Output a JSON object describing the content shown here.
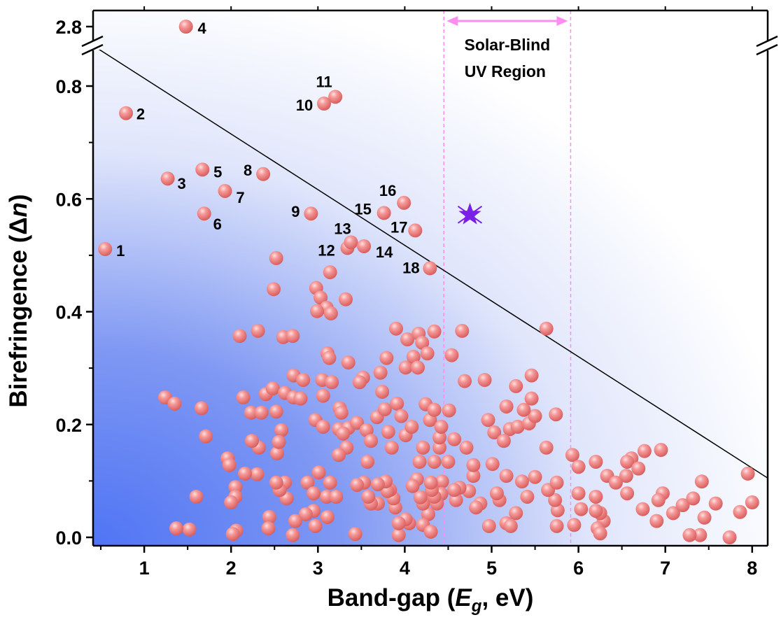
{
  "chart_data": {
    "type": "scatter",
    "xlabel": {
      "prefix": "Band-gap (",
      "var": "E",
      "sub": "g",
      "suffix": ", eV)"
    },
    "ylabel": {
      "prefix": "Birefringence (",
      "delta": "Δ",
      "var": "n",
      "suffix": ")"
    },
    "xlim": [
      0.41,
      8.18
    ],
    "ylim": [
      -0.015,
      0.87
    ],
    "y_break": {
      "above": 0.87,
      "upper_tick": 2.8
    },
    "x_ticks": [
      "1",
      "2",
      "3",
      "4",
      "5",
      "6",
      "7",
      "8"
    ],
    "x_tick_values": [
      1,
      2,
      3,
      4,
      5,
      6,
      7,
      8
    ],
    "y_ticks": [
      "0.0",
      "0.2",
      "0.4",
      "0.6",
      "0.8"
    ],
    "y_tick_values": [
      0,
      0.2,
      0.4,
      0.6,
      0.8
    ],
    "y_upper_tick": "2.8",
    "grid": false,
    "colors": {
      "point": "#f08080",
      "point_highlight": "#ffe0e0",
      "star": "#7a1fe6",
      "line": "#000000",
      "region": "#ff8cf0",
      "background_blue": "#4f74f5"
    },
    "region": {
      "x_range": [
        4.45,
        5.91
      ],
      "label_line1": "Solar-Blind",
      "label_line2": "UV Region"
    },
    "trend_line": {
      "from": [
        0.41,
        0.872
      ],
      "to": [
        8.18,
        0.105
      ]
    },
    "star_point": {
      "x": 4.75,
      "y": 0.572
    },
    "labeled_points": [
      {
        "label": "1",
        "x": 0.55,
        "y": 0.511
      },
      {
        "label": "2",
        "x": 0.79,
        "y": 0.752
      },
      {
        "label": "3",
        "x": 1.27,
        "y": 0.636
      },
      {
        "label": "4",
        "x": 1.48,
        "y": 2.8
      },
      {
        "label": "5",
        "x": 1.67,
        "y": 0.652
      },
      {
        "label": "6",
        "x": 1.69,
        "y": 0.574
      },
      {
        "label": "7",
        "x": 1.93,
        "y": 0.614
      },
      {
        "label": "8",
        "x": 2.37,
        "y": 0.644
      },
      {
        "label": "9",
        "x": 2.92,
        "y": 0.574
      },
      {
        "label": "10",
        "x": 3.07,
        "y": 0.769
      },
      {
        "label": "11",
        "x": 3.2,
        "y": 0.781
      },
      {
        "label": "12",
        "x": 3.34,
        "y": 0.513
      },
      {
        "label": "13",
        "x": 3.38,
        "y": 0.523
      },
      {
        "label": "14",
        "x": 3.53,
        "y": 0.516
      },
      {
        "label": "15",
        "x": 3.76,
        "y": 0.575
      },
      {
        "label": "16",
        "x": 3.99,
        "y": 0.593
      },
      {
        "label": "17",
        "x": 4.12,
        "y": 0.544
      },
      {
        "label": "18",
        "x": 4.29,
        "y": 0.477
      }
    ],
    "points": [
      [
        2.52,
        0.495
      ],
      [
        2.49,
        0.44
      ],
      [
        2.98,
        0.442
      ],
      [
        3.03,
        0.425
      ],
      [
        3.1,
        0.407
      ],
      [
        3.15,
        0.397
      ],
      [
        2.99,
        0.401
      ],
      [
        3.32,
        0.422
      ],
      [
        3.14,
        0.47
      ],
      [
        2.31,
        0.366
      ],
      [
        2.1,
        0.357
      ],
      [
        2.6,
        0.355
      ],
      [
        2.71,
        0.357
      ],
      [
        3.11,
        0.326
      ],
      [
        3.13,
        0.318
      ],
      [
        3.35,
        0.31
      ],
      [
        1.24,
        0.248
      ],
      [
        1.35,
        0.237
      ],
      [
        1.66,
        0.229
      ],
      [
        1.71,
        0.179
      ],
      [
        2.14,
        0.248
      ],
      [
        2.23,
        0.221
      ],
      [
        2.35,
        0.221
      ],
      [
        2.4,
        0.254
      ],
      [
        2.48,
        0.264
      ],
      [
        2.52,
        0.223
      ],
      [
        2.62,
        0.256
      ],
      [
        2.72,
        0.248
      ],
      [
        2.72,
        0.287
      ],
      [
        2.83,
        0.279
      ],
      [
        3.05,
        0.279
      ],
      [
        3.16,
        0.275
      ],
      [
        3.06,
        0.251
      ],
      [
        2.8,
        0.246
      ],
      [
        2.97,
        0.208
      ],
      [
        3.06,
        0.196
      ],
      [
        3.25,
        0.229
      ],
      [
        3.27,
        0.221
      ],
      [
        3.24,
        0.192
      ],
      [
        3.35,
        0.194
      ],
      [
        3.45,
        0.203
      ],
      [
        3.52,
        0.283
      ],
      [
        3.48,
        0.275
      ],
      [
        3.72,
        0.292
      ],
      [
        3.74,
        0.258
      ],
      [
        3.68,
        0.213
      ],
      [
        3.56,
        0.19
      ],
      [
        3.77,
        0.227
      ],
      [
        3.81,
        0.187
      ],
      [
        3.91,
        0.237
      ],
      [
        3.96,
        0.215
      ],
      [
        4.01,
        0.301
      ],
      [
        3.79,
        0.318
      ],
      [
        3.9,
        0.37
      ],
      [
        4.03,
        0.351
      ],
      [
        4.1,
        0.32
      ],
      [
        4.16,
        0.361
      ],
      [
        4.2,
        0.345
      ],
      [
        4.26,
        0.326
      ],
      [
        4.34,
        0.365
      ],
      [
        4.15,
        0.301
      ],
      [
        4.66,
        0.366
      ],
      [
        4.54,
        0.323
      ],
      [
        4.24,
        0.236
      ],
      [
        4.29,
        0.208
      ],
      [
        4.34,
        0.226
      ],
      [
        4.51,
        0.225
      ],
      [
        4.69,
        0.277
      ],
      [
        4.92,
        0.279
      ],
      [
        4.96,
        0.208
      ],
      [
        5.03,
        0.186
      ],
      [
        5.21,
        0.192
      ],
      [
        5.14,
        0.171
      ],
      [
        5.3,
        0.196
      ],
      [
        5.43,
        0.202
      ],
      [
        5.5,
        0.215
      ],
      [
        5.37,
        0.226
      ],
      [
        5.17,
        0.232
      ],
      [
        5.28,
        0.268
      ],
      [
        5.46,
        0.287
      ],
      [
        5.46,
        0.246
      ],
      [
        5.74,
        0.218
      ],
      [
        5.63,
        0.159
      ],
      [
        5.63,
        0.37
      ],
      [
        5.93,
        0.146
      ],
      [
        6.0,
        0.125
      ],
      [
        6.2,
        0.134
      ],
      [
        6.33,
        0.109
      ],
      [
        6.61,
        0.14
      ],
      [
        6.56,
        0.134
      ],
      [
        6.76,
        0.153
      ],
      [
        6.95,
        0.155
      ],
      [
        6.55,
        0.109
      ],
      [
        6.56,
        0.078
      ],
      [
        6.69,
        0.122
      ],
      [
        6.43,
        0.097
      ],
      [
        6.97,
        0.078
      ],
      [
        6.92,
        0.066
      ],
      [
        6.74,
        0.05
      ],
      [
        6.9,
        0.029
      ],
      [
        7.09,
        0.043
      ],
      [
        7.2,
        0.057
      ],
      [
        7.32,
        0.069
      ],
      [
        7.42,
        0.099
      ],
      [
        7.45,
        0.035
      ],
      [
        7.4,
        0.004
      ],
      [
        7.28,
        0.004
      ],
      [
        7.58,
        0.06
      ],
      [
        7.86,
        0.045
      ],
      [
        7.95,
        0.113
      ],
      [
        8.0,
        0.062
      ],
      [
        7.74,
        0.0
      ],
      [
        6.29,
        0.029
      ],
      [
        6.25,
        0.043
      ],
      [
        6.2,
        0.072
      ],
      [
        6.2,
        0.047
      ],
      [
        6.22,
        0.016
      ],
      [
        6.25,
        0.007
      ],
      [
        6.0,
        0.078
      ],
      [
        6.03,
        0.05
      ],
      [
        5.95,
        0.022
      ],
      [
        5.75,
        0.02
      ],
      [
        5.76,
        0.048
      ],
      [
        5.73,
        0.066
      ],
      [
        5.65,
        0.084
      ],
      [
        5.75,
        0.097
      ],
      [
        5.5,
        0.107
      ],
      [
        5.41,
        0.072
      ],
      [
        5.35,
        0.099
      ],
      [
        5.28,
        0.043
      ],
      [
        5.17,
        0.025
      ],
      [
        5.22,
        0.02
      ],
      [
        5.17,
        0.109
      ],
      [
        5.09,
        0.066
      ],
      [
        5.06,
        0.078
      ],
      [
        5.01,
        0.13
      ],
      [
        4.97,
        0.02
      ],
      [
        4.87,
        0.06
      ],
      [
        4.82,
        0.053
      ],
      [
        4.79,
        0.109
      ],
      [
        4.79,
        0.128
      ],
      [
        4.74,
        0.082
      ],
      [
        4.63,
        0.088
      ],
      [
        4.59,
        0.066
      ],
      [
        4.57,
        0.084
      ],
      [
        4.5,
        0.134
      ],
      [
        4.43,
        0.099
      ],
      [
        4.42,
        0.077
      ],
      [
        4.37,
        0.06
      ],
      [
        4.34,
        0.072
      ],
      [
        4.31,
        0.084
      ],
      [
        4.3,
        0.097
      ],
      [
        4.27,
        0.041
      ],
      [
        4.21,
        0.06
      ],
      [
        4.21,
        0.022
      ],
      [
        4.3,
        0.01
      ],
      [
        4.18,
        0.071
      ],
      [
        4.14,
        0.103
      ],
      [
        4.09,
        0.091
      ],
      [
        4.05,
        0.025
      ],
      [
        4.01,
        0.032
      ],
      [
        3.93,
        0.004
      ],
      [
        3.93,
        0.025
      ],
      [
        3.89,
        0.053
      ],
      [
        3.87,
        0.069
      ],
      [
        3.83,
        0.084
      ],
      [
        3.8,
        0.082
      ],
      [
        3.78,
        0.099
      ],
      [
        3.69,
        0.094
      ],
      [
        3.69,
        0.06
      ],
      [
        3.61,
        0.06
      ],
      [
        3.58,
        0.072
      ],
      [
        3.53,
        0.097
      ],
      [
        3.45,
        0.093
      ],
      [
        3.43,
        0.006
      ],
      [
        3.33,
        0.159
      ],
      [
        3.29,
        0.184
      ],
      [
        3.24,
        0.146
      ],
      [
        3.14,
        0.097
      ],
      [
        3.1,
        0.072
      ],
      [
        3.11,
        0.036
      ],
      [
        2.97,
        0.02
      ],
      [
        2.95,
        0.047
      ],
      [
        2.88,
        0.097
      ],
      [
        2.86,
        0.041
      ],
      [
        2.74,
        0.029
      ],
      [
        2.71,
        0.004
      ],
      [
        2.64,
        0.069
      ],
      [
        2.62,
        0.097
      ],
      [
        2.56,
        0.084
      ],
      [
        2.52,
        0.097
      ],
      [
        2.44,
        0.036
      ],
      [
        2.43,
        0.016
      ],
      [
        2.32,
        0.159
      ],
      [
        2.3,
        0.112
      ],
      [
        2.16,
        0.113
      ],
      [
        2.05,
        0.089
      ],
      [
        2.05,
        0.072
      ],
      [
        2.0,
        0.062
      ],
      [
        2.06,
        0.012
      ],
      [
        2.02,
        0.006
      ],
      [
        1.96,
        0.14
      ],
      [
        1.98,
        0.128
      ],
      [
        1.6,
        0.072
      ],
      [
        1.52,
        0.014
      ],
      [
        1.37,
        0.016
      ],
      [
        2.24,
        0.171
      ],
      [
        2.58,
        0.19
      ],
      [
        2.53,
        0.149
      ],
      [
        2.55,
        0.169
      ],
      [
        2.95,
        0.078
      ],
      [
        3.01,
        0.115
      ],
      [
        3.21,
        0.072
      ],
      [
        3.57,
        0.134
      ],
      [
        3.61,
        0.171
      ],
      [
        3.85,
        0.159
      ],
      [
        4.01,
        0.181
      ],
      [
        4.08,
        0.196
      ],
      [
        4.17,
        0.134
      ],
      [
        4.34,
        0.134
      ],
      [
        4.4,
        0.159
      ],
      [
        4.57,
        0.174
      ],
      [
        4.71,
        0.159
      ],
      [
        4.4,
        0.177
      ],
      [
        4.42,
        0.196
      ],
      [
        4.21,
        0.159
      ]
    ]
  }
}
